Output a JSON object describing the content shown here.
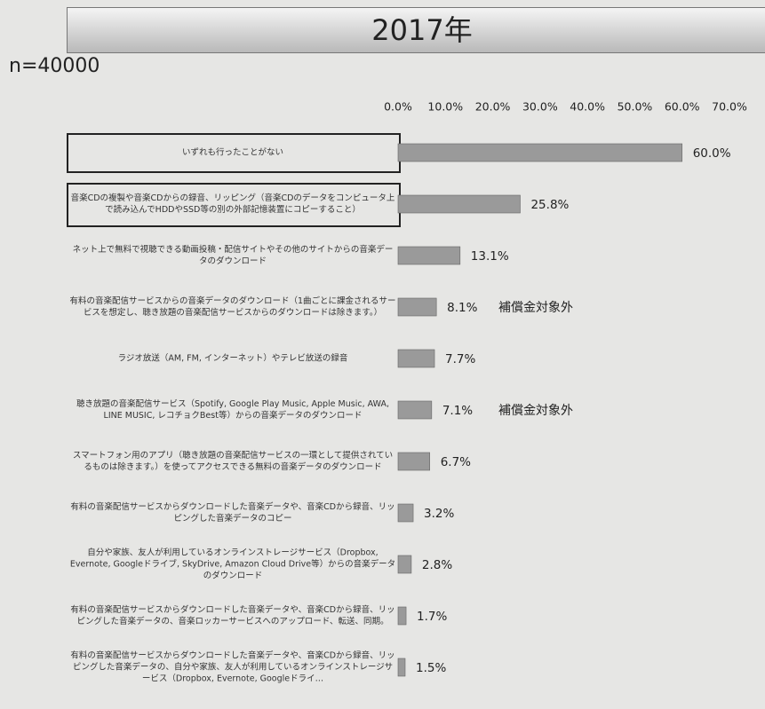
{
  "chart_data": {
    "type": "bar",
    "orientation": "horizontal",
    "title": "2017年",
    "subtitle": "n=40000",
    "categories": [
      "いずれも行ったことがない",
      "音楽CDの複製や音楽CDからの録音、リッピング（音楽CDのデータをコンピュータ上で読み込んでHDDやSSD等の別の外部記憶装置にコピーすること）",
      "ネット上で無料で視聴できる動画投稿・配信サイトやその他のサイトからの音楽データのダウンロード",
      "有料の音楽配信サービスからの音楽データのダウンロード（1曲ごとに課金されるサービスを想定し、聴き放題の音楽配信サービスからのダウンロードは除きます。）",
      "ラジオ放送（AM, FM, インターネット）やテレビ放送の録音",
      "聴き放題の音楽配信サービス（Spotify, Google Play Music, Apple Music, AWA, LINE MUSIC, レコチョクBest等）からの音楽データのダウンロード",
      "スマートフォン用のアプリ（聴き放題の音楽配信サービスの一環として提供されているものは除きます。）を使ってアクセスできる無料の音楽データのダウンロード",
      "有料の音楽配信サービスからダウンロードした音楽データや、音楽CDから録音、リッピングした音楽データのコピー",
      "自分や家族、友人が利用しているオンラインストレージサービス（Dropbox, Evernote, Googleドライブ, SkyDrive, Amazon Cloud Drive等）からの音楽データのダウンロード",
      "有料の音楽配信サービスからダウンロードした音楽データや、音楽CDから録音、リッピングした音楽データの、音楽ロッカーサービスへのアップロード、転送、同期。",
      "有料の音楽配信サービスからダウンロードした音楽データや、音楽CDから録音、リッピングした音楽データの、自分や家族、友人が利用しているオンラインストレージサービス（Dropbox, Evernote, Googleドライ…"
    ],
    "values": [
      60.0,
      25.8,
      13.1,
      8.1,
      7.7,
      7.1,
      6.7,
      3.2,
      2.8,
      1.7,
      1.5
    ],
    "value_labels": [
      "60.0%",
      "25.8%",
      "13.1%",
      "8.1%",
      "7.7%",
      "7.1%",
      "6.7%",
      "3.2%",
      "2.8%",
      "1.7%",
      "1.5%"
    ],
    "notes": [
      null,
      null,
      null,
      "補償金対象外",
      null,
      "補償金対象外",
      null,
      null,
      null,
      null,
      null
    ],
    "color": "#9a9a9a",
    "xlim": [
      0,
      70
    ],
    "xticks": [
      {
        "value": 0,
        "label": "0.0%"
      },
      {
        "value": 10,
        "label": "10.0%"
      },
      {
        "value": 20,
        "label": "20.0%"
      },
      {
        "value": 30,
        "label": "30.0%"
      },
      {
        "value": 40,
        "label": "40.0%"
      },
      {
        "value": 50,
        "label": "50.0%"
      },
      {
        "value": 60,
        "label": "60.0%"
      },
      {
        "value": 70,
        "label": "70.0%"
      }
    ]
  }
}
